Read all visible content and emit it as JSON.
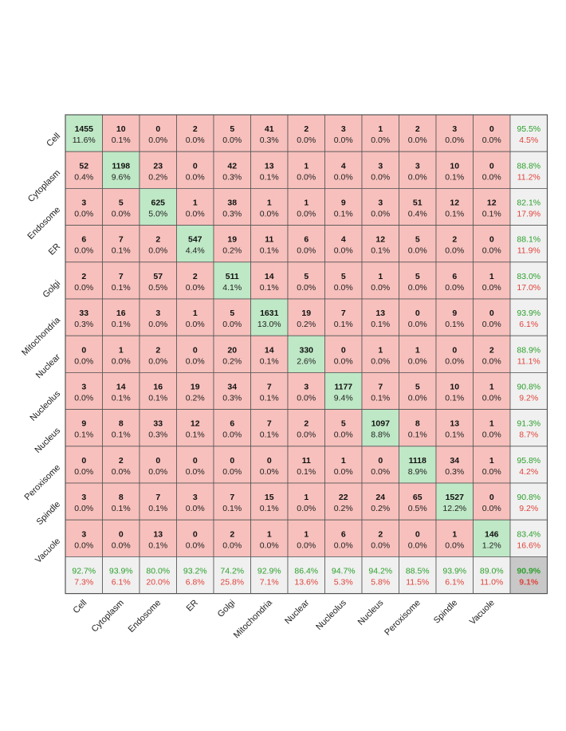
{
  "chart_data": {
    "type": "heatmap",
    "subtype": "confusion-matrix",
    "title": "",
    "xlabel": "",
    "ylabel": "",
    "labels": [
      "Cell",
      "Cytoplasm",
      "Endosome",
      "ER",
      "Golgi",
      "Mitochondria",
      "Nuclear",
      "Nucleolus",
      "Nucleus",
      "Peroxisome",
      "Spindle",
      "Vacuole"
    ],
    "counts": [
      [
        1455,
        10,
        0,
        2,
        5,
        41,
        2,
        3,
        1,
        2,
        3,
        0
      ],
      [
        52,
        1198,
        23,
        0,
        42,
        13,
        1,
        4,
        3,
        3,
        10,
        0
      ],
      [
        3,
        5,
        625,
        1,
        38,
        1,
        1,
        9,
        3,
        51,
        12,
        12
      ],
      [
        6,
        7,
        2,
        547,
        19,
        11,
        6,
        4,
        12,
        5,
        2,
        0
      ],
      [
        2,
        7,
        57,
        2,
        511,
        14,
        5,
        5,
        1,
        5,
        6,
        1
      ],
      [
        33,
        16,
        3,
        1,
        5,
        1631,
        19,
        7,
        13,
        0,
        9,
        0
      ],
      [
        0,
        1,
        2,
        0,
        20,
        14,
        330,
        0,
        1,
        1,
        0,
        2
      ],
      [
        3,
        14,
        16,
        19,
        34,
        7,
        3,
        1177,
        7,
        5,
        10,
        1
      ],
      [
        9,
        8,
        33,
        12,
        6,
        7,
        2,
        5,
        1097,
        8,
        13,
        1
      ],
      [
        0,
        2,
        0,
        0,
        0,
        0,
        11,
        1,
        0,
        1118,
        34,
        1
      ],
      [
        3,
        8,
        7,
        3,
        7,
        15,
        1,
        22,
        24,
        65,
        1527,
        0
      ],
      [
        3,
        0,
        13,
        0,
        2,
        1,
        1,
        6,
        2,
        0,
        1,
        146
      ]
    ],
    "cell_percents": [
      [
        "11.6%",
        "0.1%",
        "0.0%",
        "0.0%",
        "0.0%",
        "0.3%",
        "0.0%",
        "0.0%",
        "0.0%",
        "0.0%",
        "0.0%",
        "0.0%"
      ],
      [
        "0.4%",
        "9.6%",
        "0.2%",
        "0.0%",
        "0.3%",
        "0.1%",
        "0.0%",
        "0.0%",
        "0.0%",
        "0.0%",
        "0.1%",
        "0.0%"
      ],
      [
        "0.0%",
        "0.0%",
        "5.0%",
        "0.0%",
        "0.3%",
        "0.0%",
        "0.0%",
        "0.1%",
        "0.0%",
        "0.4%",
        "0.1%",
        "0.1%"
      ],
      [
        "0.0%",
        "0.1%",
        "0.0%",
        "4.4%",
        "0.2%",
        "0.1%",
        "0.0%",
        "0.0%",
        "0.1%",
        "0.0%",
        "0.0%",
        "0.0%"
      ],
      [
        "0.0%",
        "0.1%",
        "0.5%",
        "0.0%",
        "4.1%",
        "0.1%",
        "0.0%",
        "0.0%",
        "0.0%",
        "0.0%",
        "0.0%",
        "0.0%"
      ],
      [
        "0.3%",
        "0.1%",
        "0.0%",
        "0.0%",
        "0.0%",
        "13.0%",
        "0.2%",
        "0.1%",
        "0.1%",
        "0.0%",
        "0.1%",
        "0.0%"
      ],
      [
        "0.0%",
        "0.0%",
        "0.0%",
        "0.0%",
        "0.2%",
        "0.1%",
        "2.6%",
        "0.0%",
        "0.0%",
        "0.0%",
        "0.0%",
        "0.0%"
      ],
      [
        "0.0%",
        "0.1%",
        "0.1%",
        "0.2%",
        "0.3%",
        "0.1%",
        "0.0%",
        "9.4%",
        "0.1%",
        "0.0%",
        "0.1%",
        "0.0%"
      ],
      [
        "0.1%",
        "0.1%",
        "0.3%",
        "0.1%",
        "0.0%",
        "0.1%",
        "0.0%",
        "0.0%",
        "8.8%",
        "0.1%",
        "0.1%",
        "0.0%"
      ],
      [
        "0.0%",
        "0.0%",
        "0.0%",
        "0.0%",
        "0.0%",
        "0.0%",
        "0.1%",
        "0.0%",
        "0.0%",
        "8.9%",
        "0.3%",
        "0.0%"
      ],
      [
        "0.0%",
        "0.1%",
        "0.1%",
        "0.0%",
        "0.1%",
        "0.1%",
        "0.0%",
        "0.2%",
        "0.2%",
        "0.5%",
        "12.2%",
        "0.0%"
      ],
      [
        "0.0%",
        "0.0%",
        "0.1%",
        "0.0%",
        "0.0%",
        "0.0%",
        "0.0%",
        "0.0%",
        "0.0%",
        "0.0%",
        "0.0%",
        "1.2%"
      ]
    ],
    "row_summary": [
      [
        "95.5%",
        "4.5%"
      ],
      [
        "88.8%",
        "11.2%"
      ],
      [
        "82.1%",
        "17.9%"
      ],
      [
        "88.1%",
        "11.9%"
      ],
      [
        "83.0%",
        "17.0%"
      ],
      [
        "93.9%",
        "6.1%"
      ],
      [
        "88.9%",
        "11.1%"
      ],
      [
        "90.8%",
        "9.2%"
      ],
      [
        "91.3%",
        "8.7%"
      ],
      [
        "95.8%",
        "4.2%"
      ],
      [
        "90.8%",
        "9.2%"
      ],
      [
        "83.4%",
        "16.6%"
      ]
    ],
    "col_summary": [
      [
        "92.7%",
        "7.3%"
      ],
      [
        "93.9%",
        "6.1%"
      ],
      [
        "80.0%",
        "20.0%"
      ],
      [
        "93.2%",
        "6.8%"
      ],
      [
        "74.2%",
        "25.8%"
      ],
      [
        "92.9%",
        "7.1%"
      ],
      [
        "86.4%",
        "13.6%"
      ],
      [
        "94.7%",
        "5.3%"
      ],
      [
        "94.2%",
        "5.8%"
      ],
      [
        "88.5%",
        "11.5%"
      ],
      [
        "93.9%",
        "6.1%"
      ],
      [
        "89.0%",
        "11.0%"
      ]
    ],
    "overall": [
      "90.9%",
      "9.1%"
    ],
    "colors": {
      "diagonal": "#bfe8c6",
      "off_diagonal": "#f7c0bc",
      "summary": "#f0f0f0",
      "overall": "#c8c8c8",
      "border": "#555555",
      "correct_text": "#2ca02c",
      "error_text": "#e0423a"
    }
  }
}
